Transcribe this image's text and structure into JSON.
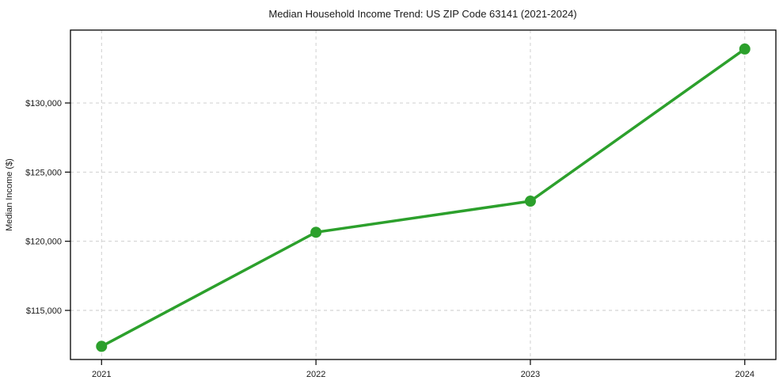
{
  "chart_data": {
    "type": "line",
    "title": "Median Household Income Trend: US ZIP Code 63141 (2021-2024)",
    "xlabel": "",
    "ylabel": "Median Income ($)",
    "categories": [
      "2021",
      "2022",
      "2023",
      "2024"
    ],
    "x": [
      2021,
      2022,
      2023,
      2024
    ],
    "series": [
      {
        "name": "Median Household Income",
        "values": [
          112400,
          120650,
          122900,
          133900
        ]
      }
    ],
    "yticks": [
      115000,
      120000,
      125000,
      130000
    ],
    "ytick_labels": [
      "$115,000",
      "$120,000",
      "$125,000",
      "$130,000"
    ],
    "ylim": [
      111450,
      135270
    ],
    "xlim": [
      2020.855,
      2024.145
    ],
    "grid": true,
    "legend": "none",
    "colors": {
      "line": "#2ca02c",
      "marker": "#2ca02c",
      "grid": "#c9c9c9",
      "axis": "#000000",
      "text": "#1a1a1a",
      "background": "#ffffff"
    }
  }
}
